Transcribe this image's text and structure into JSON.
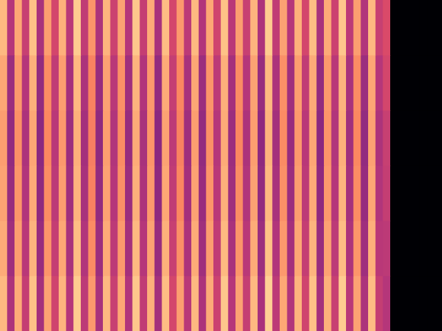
{
  "chart_data": {
    "type": "heatmap",
    "tick_labels": false,
    "grid": false,
    "color_range": [
      0,
      100
    ],
    "cells": [
      [
        86,
        50,
        82,
        55,
        88,
        47,
        80,
        58,
        84,
        51,
        90,
        53,
        78,
        48,
        85,
        56,
        81,
        50,
        89,
        54,
        83,
        47,
        87,
        58,
        79,
        52,
        86,
        49,
        82,
        57,
        88,
        51,
        80,
        55,
        85,
        48,
        90,
        53,
        81,
        50,
        84,
        58,
        87,
        47,
        83,
        56,
        89,
        52,
        80,
        49,
        86,
        55,
        60,
        0,
        0,
        0,
        0,
        0,
        0,
        0
      ],
      [
        82,
        44,
        79,
        50,
        84,
        42,
        76,
        53,
        80,
        46,
        86,
        48,
        74,
        43,
        81,
        51,
        77,
        45,
        85,
        49,
        79,
        42,
        83,
        54,
        75,
        47,
        82,
        44,
        78,
        52,
        84,
        46,
        76,
        50,
        81,
        43,
        86,
        48,
        77,
        45,
        80,
        53,
        83,
        42,
        79,
        51,
        85,
        47,
        76,
        44,
        82,
        50,
        58,
        0,
        0,
        0,
        0,
        0,
        0,
        0
      ],
      [
        80,
        42,
        77,
        48,
        82,
        40,
        75,
        51,
        79,
        44,
        84,
        46,
        73,
        41,
        80,
        49,
        76,
        43,
        83,
        47,
        78,
        40,
        81,
        52,
        74,
        45,
        80,
        42,
        77,
        50,
        83,
        44,
        75,
        48,
        80,
        41,
        85,
        46,
        76,
        43,
        79,
        51,
        82,
        40,
        78,
        49,
        84,
        45,
        75,
        42,
        81,
        48,
        55,
        0,
        0,
        0,
        0,
        0,
        0,
        0
      ],
      [
        81,
        43,
        78,
        49,
        83,
        41,
        76,
        52,
        80,
        45,
        85,
        47,
        74,
        42,
        81,
        50,
        77,
        44,
        84,
        48,
        79,
        41,
        82,
        53,
        75,
        46,
        81,
        43,
        78,
        51,
        84,
        45,
        76,
        49,
        81,
        42,
        86,
        47,
        77,
        44,
        80,
        52,
        83,
        41,
        79,
        50,
        85,
        46,
        76,
        43,
        82,
        49,
        54,
        0,
        0,
        0,
        0,
        0,
        0,
        0
      ],
      [
        83,
        45,
        80,
        51,
        85,
        43,
        78,
        54,
        82,
        47,
        87,
        49,
        76,
        44,
        83,
        52,
        79,
        46,
        86,
        50,
        81,
        43,
        84,
        55,
        77,
        48,
        83,
        45,
        80,
        53,
        86,
        47,
        78,
        51,
        83,
        44,
        88,
        49,
        79,
        46,
        82,
        54,
        85,
        43,
        81,
        52,
        87,
        48,
        78,
        45,
        84,
        51,
        52,
        0,
        0,
        0,
        0,
        0,
        0,
        0
      ],
      [
        86,
        48,
        83,
        54,
        88,
        46,
        81,
        57,
        85,
        50,
        90,
        52,
        79,
        47,
        86,
        55,
        82,
        49,
        89,
        53,
        84,
        46,
        87,
        58,
        80,
        51,
        86,
        48,
        83,
        56,
        89,
        50,
        81,
        54,
        86,
        47,
        91,
        52,
        82,
        49,
        85,
        57,
        88,
        46,
        84,
        55,
        90,
        51,
        81,
        48,
        87,
        54,
        50,
        0,
        0,
        0,
        0,
        0,
        0,
        0
      ]
    ]
  }
}
